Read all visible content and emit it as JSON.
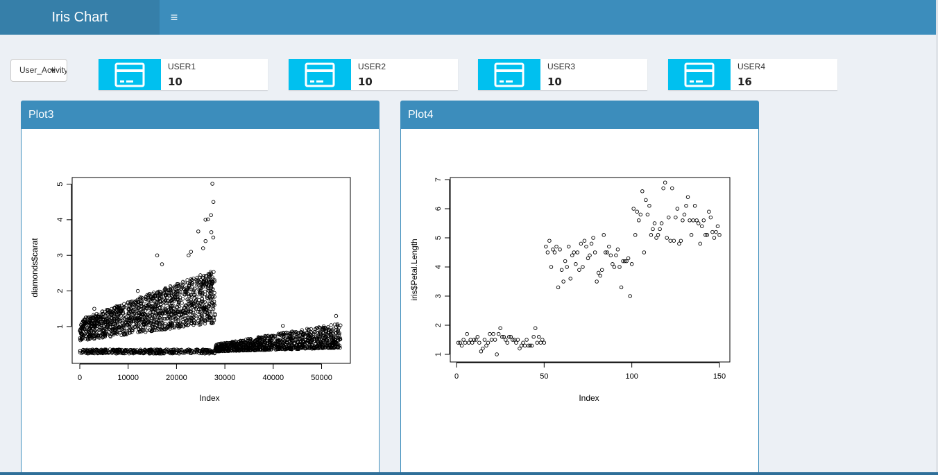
{
  "header": {
    "title": "Iris Chart",
    "menu_icon": "hamburger-icon"
  },
  "filter": {
    "selected": "User_Activity"
  },
  "infoboxes": [
    {
      "label": "USER1",
      "value": "10",
      "icon": "credit-card-icon"
    },
    {
      "label": "USER2",
      "value": "10",
      "icon": "credit-card-icon"
    },
    {
      "label": "USER3",
      "value": "10",
      "icon": "credit-card-icon"
    },
    {
      "label": "USER4",
      "value": "16",
      "icon": "credit-card-icon"
    }
  ],
  "colors": {
    "header": "#3c8dbc",
    "logo": "#367fa9",
    "infobox_icon": "#00c0ef",
    "body": "#ecf0f5"
  },
  "plot3": {
    "title": "Plot3"
  },
  "plot4": {
    "title": "Plot4"
  },
  "chart_data": [
    {
      "type": "scatter",
      "xlabel": "Index",
      "ylabel": "diamonds$carat",
      "xlim": [
        0,
        53940
      ],
      "ylim": [
        0.2,
        5.01
      ],
      "xticks": [
        "0",
        "10000",
        "20000",
        "30000",
        "40000",
        "50000"
      ],
      "yticks": [
        "1",
        "2",
        "3",
        "4",
        "5"
      ],
      "summary_bands": [
        {
          "x_from": 0,
          "x_to": 28000,
          "y_low_start": 0.6,
          "y_low_end": 1.1,
          "y_high_start": 1.2,
          "y_high_end": 2.6
        },
        {
          "x_from": 0,
          "x_to": 28000,
          "y_center": 0.3
        },
        {
          "x_from": 28000,
          "x_to": 53940,
          "y_low_start": 0.3,
          "y_low_end": 0.4,
          "y_high_start": 0.5,
          "y_high_end": 1.1
        }
      ],
      "outliers": [
        {
          "x": 27415,
          "y": 5.01
        },
        {
          "x": 27630,
          "y": 4.5
        },
        {
          "x": 27130,
          "y": 4.13
        },
        {
          "x": 26500,
          "y": 4.01
        },
        {
          "x": 25998,
          "y": 4.0
        },
        {
          "x": 27200,
          "y": 3.65
        },
        {
          "x": 26000,
          "y": 3.4
        },
        {
          "x": 24500,
          "y": 3.67
        },
        {
          "x": 22500,
          "y": 3.0
        },
        {
          "x": 16000,
          "y": 3.0
        },
        {
          "x": 17000,
          "y": 2.75
        },
        {
          "x": 27600,
          "y": 3.5
        },
        {
          "x": 23000,
          "y": 3.1
        },
        {
          "x": 25500,
          "y": 3.2
        },
        {
          "x": 53000,
          "y": 1.3
        },
        {
          "x": 42000,
          "y": 1.02
        },
        {
          "x": 12000,
          "y": 2.0
        },
        {
          "x": 3000,
          "y": 1.5
        }
      ]
    },
    {
      "type": "scatter",
      "xlabel": "Index",
      "ylabel": "iris$Petal.Length",
      "xlim": [
        0,
        150
      ],
      "ylim": [
        1,
        7
      ],
      "xticks": [
        "0",
        "50",
        "100",
        "150"
      ],
      "yticks": [
        "1",
        "2",
        "3",
        "4",
        "5",
        "6",
        "7"
      ],
      "values": [
        1.4,
        1.4,
        1.3,
        1.5,
        1.4,
        1.7,
        1.4,
        1.5,
        1.4,
        1.5,
        1.5,
        1.6,
        1.4,
        1.1,
        1.2,
        1.5,
        1.3,
        1.4,
        1.7,
        1.5,
        1.7,
        1.5,
        1.0,
        1.7,
        1.9,
        1.6,
        1.6,
        1.5,
        1.4,
        1.6,
        1.6,
        1.5,
        1.5,
        1.4,
        1.5,
        1.2,
        1.3,
        1.4,
        1.3,
        1.5,
        1.3,
        1.3,
        1.3,
        1.6,
        1.9,
        1.4,
        1.6,
        1.4,
        1.5,
        1.4,
        4.7,
        4.5,
        4.9,
        4.0,
        4.6,
        4.5,
        4.7,
        3.3,
        4.6,
        3.9,
        3.5,
        4.2,
        4.0,
        4.7,
        3.6,
        4.4,
        4.5,
        4.1,
        4.5,
        3.9,
        4.8,
        4.0,
        4.9,
        4.7,
        4.3,
        4.4,
        4.8,
        5.0,
        4.5,
        3.5,
        3.8,
        3.7,
        3.9,
        5.1,
        4.5,
        4.5,
        4.7,
        4.4,
        4.1,
        4.0,
        4.4,
        4.6,
        4.0,
        3.3,
        4.2,
        4.2,
        4.2,
        4.3,
        3.0,
        4.1,
        6.0,
        5.1,
        5.9,
        5.6,
        5.8,
        6.6,
        4.5,
        6.3,
        5.8,
        6.1,
        5.1,
        5.3,
        5.5,
        5.0,
        5.1,
        5.3,
        5.5,
        6.7,
        6.9,
        5.0,
        5.7,
        4.9,
        6.7,
        4.9,
        5.7,
        6.0,
        4.8,
        4.9,
        5.6,
        5.8,
        6.1,
        6.4,
        5.6,
        5.1,
        5.6,
        6.1,
        5.6,
        5.5,
        4.8,
        5.4,
        5.6,
        5.1,
        5.1,
        5.9,
        5.7,
        5.2,
        5.0,
        5.2,
        5.4,
        5.1
      ]
    }
  ]
}
